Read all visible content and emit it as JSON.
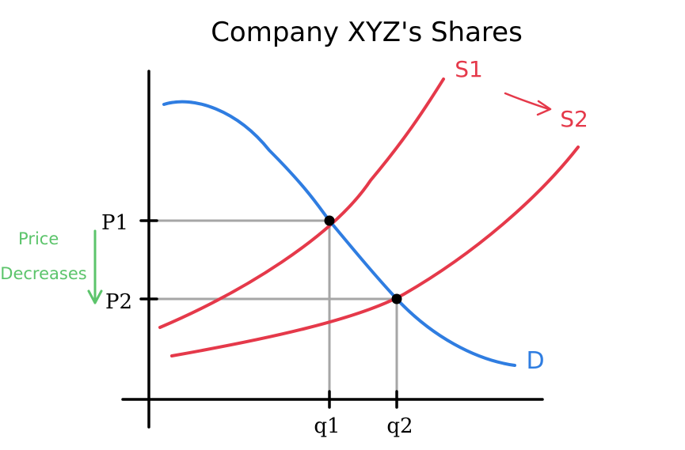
{
  "chart_data": {
    "type": "line",
    "title": "Company XYZ's Shares",
    "xlabel": "",
    "ylabel": "",
    "x_ticks": [
      "q1",
      "q2"
    ],
    "y_ticks": [
      "P1",
      "P2"
    ],
    "series": [
      {
        "name": "S1",
        "color": "#e5394a",
        "role": "supply"
      },
      {
        "name": "S2",
        "color": "#e5394a",
        "role": "supply"
      },
      {
        "name": "D",
        "color": "#2f7de1",
        "role": "demand"
      }
    ],
    "equilibria": [
      {
        "x": "q1",
        "y": "P1",
        "curves": [
          "S1",
          "D"
        ]
      },
      {
        "x": "q2",
        "y": "P2",
        "curves": [
          "S2",
          "D"
        ]
      }
    ],
    "annotations": [
      {
        "text": "Price Decreases",
        "color": "#5cc46b",
        "arrow": "down"
      },
      {
        "text": "S1 → S2",
        "color": "#e5394a",
        "arrow": "right"
      }
    ],
    "grid": false
  }
}
